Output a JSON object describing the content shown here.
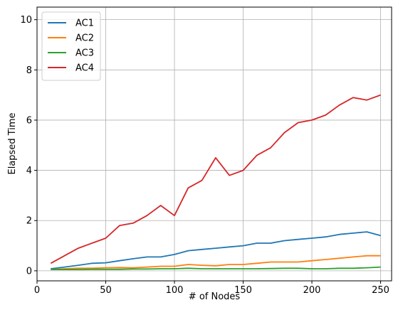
{
  "chart_data": {
    "type": "line",
    "title": "",
    "xlabel": "# of Nodes",
    "ylabel": "Elapsed Time",
    "xlim": [
      0,
      258
    ],
    "ylim": [
      -0.4,
      10.5
    ],
    "xticks": [
      0,
      50,
      100,
      150,
      200,
      250
    ],
    "yticks": [
      0,
      2,
      4,
      6,
      8,
      10
    ],
    "grid": true,
    "legend_position": "top-left",
    "x": [
      10,
      20,
      30,
      40,
      50,
      60,
      70,
      80,
      90,
      100,
      110,
      120,
      130,
      140,
      150,
      160,
      170,
      180,
      190,
      200,
      210,
      220,
      230,
      240,
      250
    ],
    "series": [
      {
        "name": "AC1",
        "color": "#1f77b4",
        "values": [
          0.08,
          0.15,
          0.22,
          0.3,
          0.32,
          0.4,
          0.48,
          0.55,
          0.55,
          0.65,
          0.8,
          0.85,
          0.9,
          0.95,
          1.0,
          1.1,
          1.1,
          1.2,
          1.25,
          1.3,
          1.35,
          1.45,
          1.5,
          1.55,
          1.4
        ]
      },
      {
        "name": "AC2",
        "color": "#ff7f0e",
        "values": [
          0.05,
          0.08,
          0.1,
          0.1,
          0.12,
          0.13,
          0.12,
          0.15,
          0.18,
          0.18,
          0.25,
          0.22,
          0.2,
          0.25,
          0.25,
          0.3,
          0.35,
          0.35,
          0.35,
          0.4,
          0.45,
          0.5,
          0.55,
          0.6,
          0.6
        ]
      },
      {
        "name": "AC3",
        "color": "#2ca02c",
        "values": [
          0.05,
          0.05,
          0.05,
          0.06,
          0.06,
          0.06,
          0.07,
          0.07,
          0.08,
          0.08,
          0.1,
          0.08,
          0.08,
          0.08,
          0.08,
          0.08,
          0.09,
          0.1,
          0.1,
          0.08,
          0.08,
          0.1,
          0.1,
          0.12,
          0.15
        ]
      },
      {
        "name": "AC4",
        "color": "#d62728",
        "values": [
          0.3,
          0.6,
          0.9,
          1.1,
          1.3,
          1.8,
          1.9,
          2.2,
          2.6,
          2.2,
          3.3,
          3.6,
          4.5,
          3.8,
          4.0,
          4.6,
          4.9,
          5.5,
          5.9,
          6.0,
          6.2,
          6.6,
          6.9,
          6.8,
          7.0
        ]
      }
    ]
  }
}
